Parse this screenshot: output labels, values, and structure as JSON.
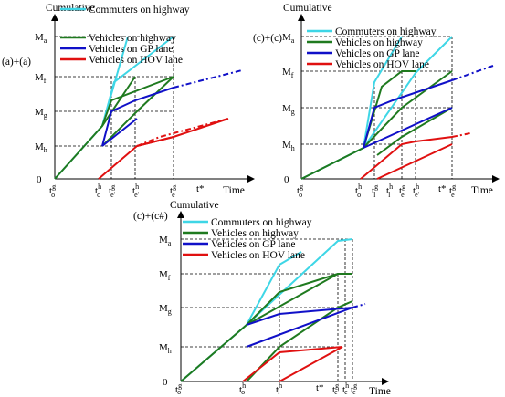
{
  "colors": {
    "commuters": "#3ed6e6",
    "vehicles": "#1f7a1f",
    "gp": "#1010c8",
    "hov": "#e01010",
    "axis": "#000000"
  },
  "legend": {
    "commuters": "Commuters on highway",
    "vehicles": "Vehicles on highway",
    "gp": "Vehicles on GP lane",
    "hov": "Vehicles on HOV lane"
  },
  "panels": {
    "a": {
      "title": "(a)+(a)",
      "y_axis_label": "Cumulative",
      "x_axis_label": "Time",
      "y_ticks": {
        "origin": "0",
        "Ma": "M",
        "Ma_sub": "a",
        "Mf": "M",
        "Mf_sub": "f",
        "Mg": "M",
        "Mg_sub": "g",
        "Mh": "M",
        "Mh_sub": "h"
      },
      "x_ticks": {
        "to_g": "t",
        "to_g_sup": "g",
        "to_g_sub": "o",
        "to_h": "t",
        "to_h_sup": "h",
        "to_h_sub": "o",
        "te1": "t",
        "te1_sup": "g",
        "te1_sub": "e'",
        "te2": "t",
        "te2_sup": "h",
        "te2_sub": "e'",
        "te3": "t",
        "te3_sup": "g",
        "te3_sub": "e",
        "tstar": "t*"
      }
    },
    "b": {
      "title": "(c)+(c)",
      "y_axis_label": "Cumulative",
      "x_axis_label": "Time",
      "y_ticks": {
        "origin": "0",
        "Ma": "M",
        "Ma_sub": "a",
        "Mf": "M",
        "Mf_sub": "f",
        "Mg": "M",
        "Mg_sub": "g",
        "Mh": "M",
        "Mh_sub": "h"
      },
      "x_ticks": {
        "to_g": "t",
        "to_g_sup": "g",
        "to_g_sub": "o",
        "to_h": "t",
        "to_h_sup": "h",
        "to_h_sub": "o",
        "t1": "t",
        "t1_sup": "g",
        "t1_sub": "l",
        "t2": "t",
        "t2_sup": "h",
        "t2_sub": "l",
        "t3": "t",
        "t3_sup": "g",
        "t3_sub": "e'",
        "t4": "t",
        "t4_sup": "h",
        "t4_sub": "e'",
        "tstar": "t*",
        "t5": "t",
        "t5_sup": "g",
        "t5_sub": "e"
      }
    },
    "c": {
      "title": "(c)+(c#)",
      "y_axis_label": "Cumulative",
      "x_axis_label": "Time",
      "y_ticks": {
        "origin": "0",
        "Ma": "M",
        "Ma_sub": "a",
        "Mf": "M",
        "Mf_sub": "f",
        "Mg": "M",
        "Mg_sub": "g",
        "Mh": "M",
        "Mh_sub": "h"
      },
      "x_ticks": {
        "to_g": "t",
        "to_g_sup": "g",
        "to_g_sub": "o",
        "to_h": "t",
        "to_h_sup": "h",
        "to_h_sub": "o",
        "t1": "t",
        "t1_sup": "h",
        "t1_sub": "l",
        "tstar": "t*",
        "t2": "t",
        "t2_sup": "g",
        "t2_sub": "e'",
        "t3": "t",
        "t3_sup": "h",
        "t3_sub": "e",
        "t4": "t",
        "t4_sup": "g",
        "t4_sub": "e"
      }
    }
  }
}
